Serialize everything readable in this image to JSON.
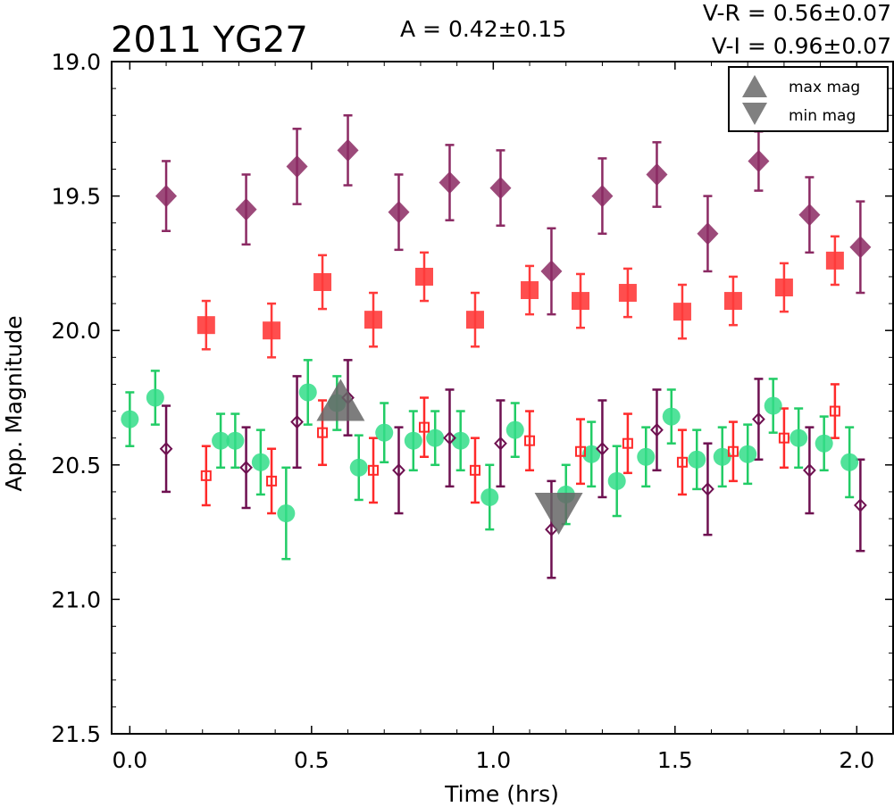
{
  "chart_data": {
    "type": "scatter",
    "title": "2011 YG27",
    "annotations": {
      "amplitude": "A  = 0.42±0.15",
      "v_r": "V-R = 0.56±0.07",
      "v_i": "V-I  = 0.96±0.07"
    },
    "xlabel": "Time (hrs)",
    "ylabel": "App. Magnitude",
    "xlim": [
      -0.05,
      2.1
    ],
    "ylim": [
      21.5,
      19.0
    ],
    "y_inverted": true,
    "grid": false,
    "xticks": [
      "0.0",
      "0.5",
      "1.0",
      "1.5",
      "2.0"
    ],
    "yticks": [
      "19.0",
      "19.5",
      "20.0",
      "20.5",
      "21.0",
      "21.5"
    ],
    "legend": {
      "placement": "top-right",
      "entries": [
        {
          "label": "max mag",
          "marker": "triangle-up",
          "color": "#808080"
        },
        {
          "label": "min mag",
          "marker": "triangle-down",
          "color": "#808080"
        }
      ]
    },
    "colors": {
      "filled_diamond": "#8b2a63",
      "filled_square": "#ff3b3b",
      "circle": "#33dd88",
      "circle_err": "#22cc66",
      "open_square": "#ff2a2a",
      "open_diamond": "#6e1050",
      "extrema": "#666666"
    },
    "series": [
      {
        "marker": "diamond-filled",
        "err": 0.07,
        "x": [
          0.1,
          0.32,
          0.46,
          0.6,
          0.74,
          0.88,
          1.02,
          1.16,
          1.3,
          1.45,
          1.59,
          1.73,
          1.87,
          2.01
        ],
        "y": [
          19.5,
          19.55,
          19.39,
          19.33,
          19.56,
          19.45,
          19.47,
          19.78,
          19.5,
          19.42,
          19.64,
          19.37,
          19.57,
          19.69
        ],
        "yerr": [
          0.13,
          0.13,
          0.14,
          0.13,
          0.14,
          0.14,
          0.14,
          0.16,
          0.14,
          0.12,
          0.14,
          0.11,
          0.14,
          0.17
        ]
      },
      {
        "marker": "square-filled",
        "x": [
          0.21,
          0.39,
          0.53,
          0.67,
          0.81,
          0.95,
          1.1,
          1.24,
          1.37,
          1.52,
          1.66,
          1.8,
          1.94
        ],
        "y": [
          19.98,
          20.0,
          19.82,
          19.96,
          19.8,
          19.96,
          19.85,
          19.89,
          19.86,
          19.93,
          19.89,
          19.84,
          19.74
        ],
        "yerr": [
          0.09,
          0.1,
          0.1,
          0.1,
          0.09,
          0.1,
          0.09,
          0.1,
          0.09,
          0.1,
          0.09,
          0.09,
          0.09
        ]
      },
      {
        "marker": "circle-filled",
        "x": [
          0.0,
          0.07,
          0.25,
          0.29,
          0.36,
          0.43,
          0.49,
          0.57,
          0.63,
          0.7,
          0.78,
          0.84,
          0.91,
          0.99,
          1.06,
          1.2,
          1.27,
          1.34,
          1.42,
          1.49,
          1.56,
          1.63,
          1.7,
          1.77,
          1.84,
          1.91,
          1.98
        ],
        "y": [
          20.33,
          20.25,
          20.41,
          20.41,
          20.49,
          20.68,
          20.23,
          20.27,
          20.51,
          20.38,
          20.41,
          20.4,
          20.41,
          20.62,
          20.37,
          20.61,
          20.46,
          20.56,
          20.47,
          20.32,
          20.48,
          20.47,
          20.46,
          20.28,
          20.4,
          20.42,
          20.49
        ],
        "yerr": [
          0.1,
          0.1,
          0.1,
          0.1,
          0.12,
          0.17,
          0.12,
          0.1,
          0.12,
          0.11,
          0.11,
          0.1,
          0.11,
          0.12,
          0.1,
          0.11,
          0.12,
          0.13,
          0.11,
          0.1,
          0.11,
          0.11,
          0.11,
          0.1,
          0.11,
          0.1,
          0.13
        ]
      },
      {
        "marker": "square-open",
        "x": [
          0.21,
          0.39,
          0.53,
          0.67,
          0.81,
          0.95,
          1.1,
          1.24,
          1.37,
          1.52,
          1.66,
          1.8,
          1.94
        ],
        "y": [
          20.54,
          20.56,
          20.38,
          20.52,
          20.36,
          20.52,
          20.41,
          20.45,
          20.42,
          20.49,
          20.45,
          20.4,
          20.3
        ],
        "yerr": [
          0.11,
          0.12,
          0.12,
          0.12,
          0.11,
          0.12,
          0.11,
          0.12,
          0.11,
          0.12,
          0.11,
          0.11,
          0.1
        ]
      },
      {
        "marker": "diamond-open",
        "x": [
          0.1,
          0.32,
          0.46,
          0.6,
          0.74,
          0.88,
          1.02,
          1.16,
          1.3,
          1.45,
          1.59,
          1.73,
          1.87,
          2.01
        ],
        "y": [
          20.44,
          20.51,
          20.34,
          20.25,
          20.52,
          20.4,
          20.42,
          20.74,
          20.44,
          20.37,
          20.59,
          20.33,
          20.52,
          20.65
        ],
        "yerr": [
          0.16,
          0.15,
          0.17,
          0.14,
          0.16,
          0.18,
          0.16,
          0.18,
          0.18,
          0.15,
          0.17,
          0.15,
          0.16,
          0.17
        ]
      }
    ],
    "extrema": [
      {
        "type": "max",
        "x": 0.58,
        "y": 20.28
      },
      {
        "type": "min",
        "x": 1.18,
        "y": 20.66
      }
    ]
  }
}
